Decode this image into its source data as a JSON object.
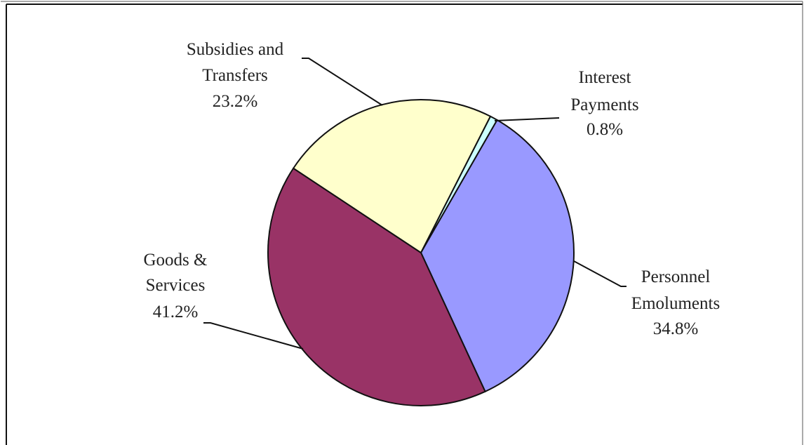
{
  "chart_data": {
    "type": "pie",
    "categories": [
      "Interest Payments",
      "Personnel Emoluments",
      "Goods & Services",
      "Subsidies and Transfers"
    ],
    "values": [
      0.8,
      34.8,
      41.2,
      23.2
    ],
    "value_labels": [
      "0.8%",
      "34.8%",
      "41.2%",
      "23.2%"
    ],
    "colors": [
      "#ccffff",
      "#9999ff",
      "#993366",
      "#ffffcc"
    ]
  }
}
